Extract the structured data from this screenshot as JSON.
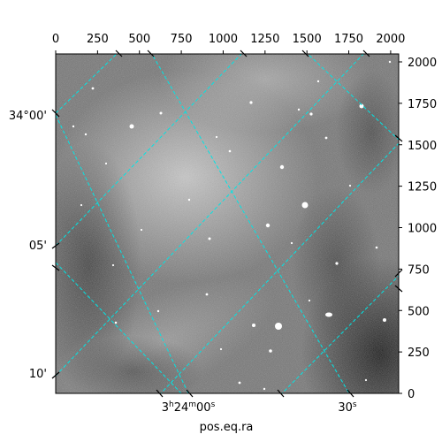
{
  "chart_data": {
    "type": "image",
    "xlabel": "pos.eq.ra",
    "ylabel": "",
    "xlim": [
      0,
      2048
    ],
    "ylim": [
      0,
      2048
    ],
    "x_ticks": [
      0,
      250,
      500,
      750,
      1000,
      1250,
      1500,
      1750,
      2000
    ],
    "x_tick_labels": [
      "0",
      "250",
      "500",
      "750",
      "1000",
      "1250",
      "1500",
      "1750",
      "2000"
    ],
    "y_ticks": [
      0,
      250,
      500,
      750,
      1000,
      1250,
      1500,
      1750,
      2000
    ],
    "y_tick_labels": [
      "0",
      "250",
      "500",
      "750",
      "1000",
      "1250",
      "1500",
      "1750",
      "2000"
    ],
    "world_ra_ticks": [
      {
        "label_prefix": "3",
        "label_h": "h",
        "label_mid": "24",
        "label_m": "m",
        "label_rest": "00",
        "label_s": "s"
      },
      {
        "label_prefix": "",
        "label_h": "",
        "label_mid": "",
        "label_m": "",
        "label_rest": "30",
        "label_s": "s"
      }
    ],
    "world_dec_ticks": [
      "34°00'",
      "05'",
      "10'"
    ],
    "grid_color": "#00e5e5",
    "grid": true,
    "colormap": "gray"
  }
}
